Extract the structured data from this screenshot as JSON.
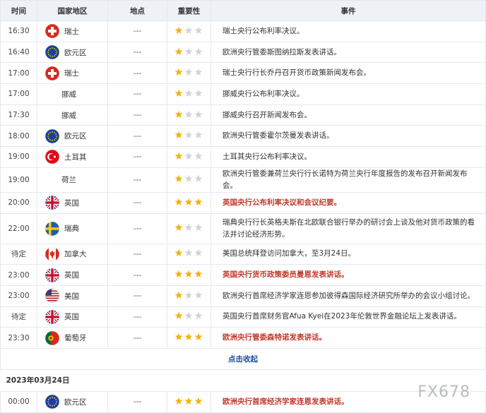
{
  "header": {
    "columns": [
      "时间",
      "国家地区",
      "地点",
      "重要性",
      "事件"
    ]
  },
  "table": {
    "rows": [
      [
        "16:30",
        "瑞士",
        "---",
        1,
        "瑞士央行公布利率决议。"
      ],
      [
        "16:40",
        "欧元区",
        "---",
        1,
        "欧洲央行管委斯图纳拉斯发表讲话。"
      ],
      [
        "17:00",
        "瑞士",
        "---",
        1,
        "瑞士央行行长乔丹召开货币政策新闻发布会。"
      ],
      [
        "17:00",
        "挪威",
        "---",
        1,
        "挪威央行公布利率决议。"
      ],
      [
        "17:30",
        "挪威",
        "---",
        1,
        "挪威央行召开新闻发布会。"
      ],
      [
        "18:00",
        "欧元区",
        "---",
        1,
        "欧洲央行管委霍尔茨曼发表讲话。"
      ],
      [
        "19:00",
        "土耳其",
        "---",
        1,
        "土耳其央行公布利率决议。"
      ],
      [
        "19:00",
        "荷兰",
        "---",
        1,
        "欧洲央行管委兼荷兰央行行长诺特为荷兰央行年度报告的发布召开新闻发布会。"
      ],
      [
        "20:00",
        "英国",
        "---",
        3,
        "英国央行公布利率决议和会议纪要。"
      ],
      [
        "22:00",
        "瑞典",
        "---",
        1,
        "瑞典央行行长英格夫斯在北欧联合银行举办的研讨会上谈及他对货币政策的看法并讨论经济形势。"
      ],
      [
        "待定",
        "加拿大",
        "---",
        1,
        "美国总统拜登访问加拿大，至3月24日。"
      ],
      [
        "23:00",
        "英国",
        "---",
        3,
        "英国央行货币政策委员曼恩发表讲话。"
      ],
      [
        "23:00",
        "美国",
        "---",
        1,
        "欧洲央行首席经济学家连恩参加彼得森国际经济研究所举办的会议小组讨论。"
      ],
      [
        "待定",
        "英国",
        "---",
        1,
        "英国央行首席财务官Afua Kyei在2023年伦敦世界金融论坛上发表讲话。"
      ],
      [
        "23:30",
        "葡萄牙",
        "---",
        3,
        "欧洲央行管委森特诺发表讲话。"
      ]
    ]
  },
  "collapse_link": "点击收起",
  "next_day": {
    "date": "2023年03月24日",
    "rows": [
      [
        "00:00",
        "欧元区",
        "---",
        3,
        "欧洲央行首席经济学家连恩发表讲话。"
      ]
    ]
  },
  "watermark": "FX678"
}
